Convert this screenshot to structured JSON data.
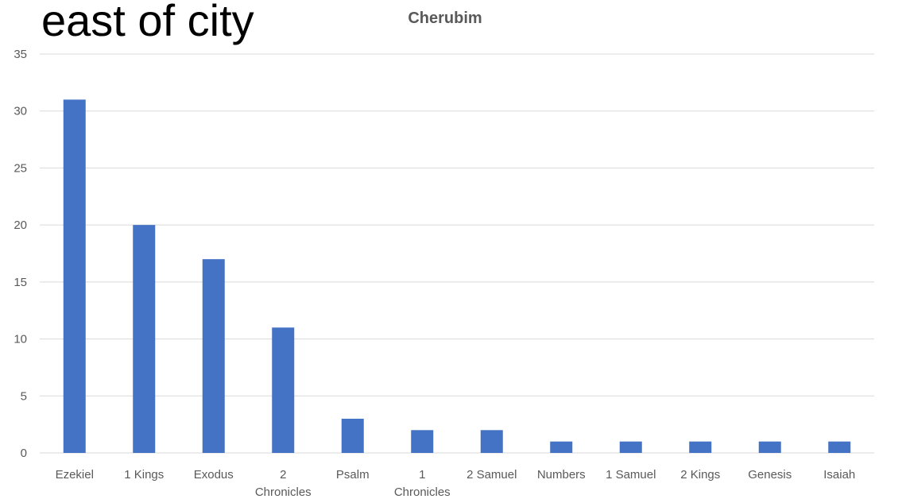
{
  "slide": {
    "title": "east of city"
  },
  "colors": {
    "bar": "#4472C4",
    "grid": "#D9D9D9",
    "text": "#595959"
  },
  "chart_data": {
    "type": "bar",
    "title": "Cherubim",
    "xlabel": "",
    "ylabel": "",
    "categories": [
      "Ezekiel",
      "1 Kings",
      "Exodus",
      "2 Chronicles",
      "Psalm",
      "1 Chronicles",
      "2 Samuel",
      "Numbers",
      "1 Samuel",
      "2 Kings",
      "Genesis",
      "Isaiah"
    ],
    "values": [
      31,
      20,
      17,
      11,
      3,
      2,
      2,
      1,
      1,
      1,
      1,
      1
    ],
    "ylim": [
      0,
      35
    ],
    "yticks": [
      0,
      5,
      10,
      15,
      20,
      25,
      30,
      35
    ],
    "grid": true,
    "legend": "none"
  }
}
